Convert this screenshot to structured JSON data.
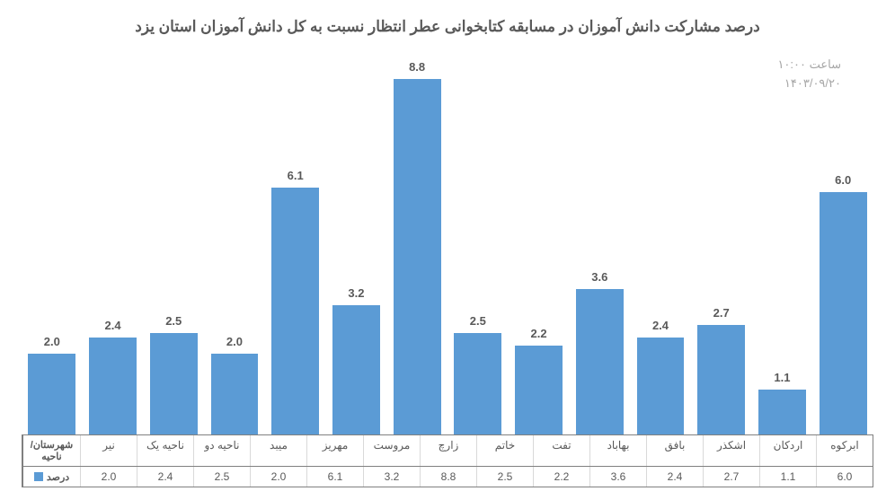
{
  "chart": {
    "type": "bar",
    "title": "درصد مشارکت دانش آموزان در مسابقه کتابخوانی عطر انتظار نسبت به کل دانش آموزان استان یزد",
    "title_fontsize": 17,
    "title_color": "#595959",
    "timestamp_time": "ساعت   ۱۰:۰۰",
    "timestamp_date": "۱۴۰۳/۰۹/۲۰",
    "meta_color": "#a6a6a6",
    "background_color": "#ffffff",
    "bar_color": "#5b9bd5",
    "axis_line_color": "#bfbfbf",
    "table_border_color": "#808080",
    "label_color": "#595959",
    "label_fontsize": 13,
    "ymax": 9.5,
    "ymin": 0,
    "bar_width_ratio": 0.78,
    "categories": [
      "ابرکوه",
      "اردکان",
      "اشکذر",
      "بافق",
      "بهاباد",
      "تفت",
      "خاتم",
      "زارچ",
      "مروست",
      "مهریز",
      "میبد",
      "ناحیه دو",
      "ناحیه یک",
      "نیر"
    ],
    "values": [
      6.0,
      1.1,
      2.7,
      2.4,
      3.6,
      2.2,
      2.5,
      8.8,
      3.2,
      6.1,
      2.0,
      2.5,
      2.4,
      2.0
    ],
    "row_header_category": "شهرستان/ناحیه",
    "row_header_value": "درصد",
    "legend_marker_color": "#5b9bd5"
  }
}
